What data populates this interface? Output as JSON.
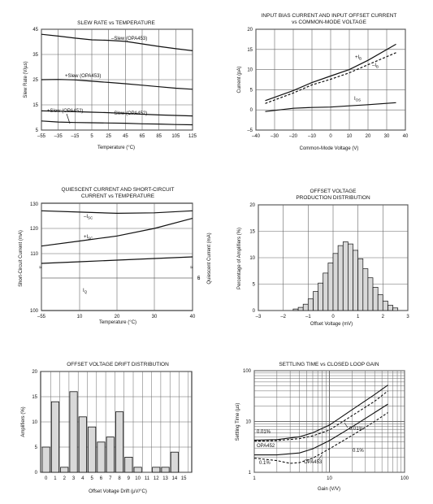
{
  "colors": {
    "axis": "#111111",
    "grid": "#666666",
    "bar_fill": "#d9d9d9",
    "curve": "#111111"
  },
  "chart_data": [
    {
      "id": "slew",
      "type": "line",
      "title": "SLEW RATE vs TEMPERATURE",
      "xlabel": "Temperature (°C)",
      "ylabel": "Slew Rate (V/µs)",
      "xlim": [
        -55,
        125
      ],
      "ylim": [
        5,
        45
      ],
      "xticks": [
        -55,
        -35,
        -15,
        5,
        25,
        45,
        65,
        85,
        105,
        125
      ],
      "yticks": [
        5,
        15,
        25,
        35,
        45
      ],
      "grid": true,
      "series": [
        {
          "name": "–Slew (OPA453)",
          "x": [
            -55,
            -35,
            -15,
            5,
            25,
            45,
            65,
            85,
            105,
            125
          ],
          "y": [
            43,
            42.3,
            41.5,
            40.8,
            40.6,
            40.2,
            39.2,
            38.2,
            37.3,
            36.5
          ]
        },
        {
          "name": "+Slew (OPA453)",
          "x": [
            -55,
            -35,
            -15,
            5,
            25,
            45,
            65,
            85,
            105,
            125
          ],
          "y": [
            25,
            25.1,
            24.9,
            24.4,
            23.9,
            23.4,
            22.8,
            22.2,
            21.6,
            21.2
          ]
        },
        {
          "name": "+Slew (OPA452)",
          "x": [
            -55,
            -35,
            -15,
            5,
            25,
            45,
            65,
            85,
            105,
            125
          ],
          "y": [
            12.6,
            12.5,
            12.3,
            12.1,
            11.9,
            11.6,
            11.3,
            11,
            10.8,
            10.6
          ]
        },
        {
          "name": "–Slew (OPA452)",
          "x": [
            -55,
            -35,
            -15,
            5,
            25,
            45,
            65,
            85,
            105,
            125
          ],
          "y": [
            8.6,
            8.2,
            8,
            7.9,
            7.8,
            7.7,
            7.5,
            7.4,
            7.2,
            7.1
          ]
        }
      ]
    },
    {
      "id": "bias",
      "type": "line",
      "title": "INPUT BIAS CURRENT AND INPUT OFFSET CURRENT",
      "subtitle": "vs COMMON-MODE VOLTAGE",
      "xlabel": "Common-Mode Voltage (V)",
      "ylabel": "Current (pA)",
      "xlim": [
        -40,
        40
      ],
      "ylim": [
        -5,
        20
      ],
      "xticks": [
        -40,
        -30,
        -20,
        -10,
        0,
        10,
        20,
        30,
        40
      ],
      "yticks": [
        -5,
        0,
        5,
        10,
        15,
        20
      ],
      "grid": true,
      "series": [
        {
          "name": "+IB",
          "x": [
            -35,
            -20,
            -10,
            0,
            10,
            20,
            35
          ],
          "y": [
            2.3,
            4.8,
            6.8,
            8.4,
            10,
            12.3,
            16.3
          ]
        },
        {
          "name": "–IB",
          "x": [
            -35,
            -20,
            -10,
            0,
            10,
            20,
            35
          ],
          "y": [
            1.6,
            4.2,
            6.2,
            7.6,
            9.2,
            11.2,
            14.2
          ]
        },
        {
          "name": "IOS",
          "x": [
            -35,
            -20,
            -10,
            0,
            10,
            20,
            35
          ],
          "y": [
            -0.4,
            0.4,
            0.6,
            0.7,
            1,
            1.3,
            1.8
          ]
        }
      ]
    },
    {
      "id": "quiescent",
      "type": "line",
      "title": "QUIESCENT CURRENT AND SHORT-CIRCUIT",
      "subtitle": "CURRENT vs TEMPERATURE",
      "xlabel": "Temperature (°C)",
      "ylabel_left": "Short-Circuit Current (mA)",
      "ylabel_right": "Quiescent Current (mA)",
      "xticks": [
        "–55",
        "10",
        "20",
        "30",
        "40"
      ],
      "yticks_left": [
        100,
        110,
        120,
        130
      ],
      "yticks_right": [
        5,
        6
      ],
      "grid": true,
      "series": [
        {
          "name": "–ISC",
          "x": [
            -55,
            10,
            20,
            30,
            40
          ],
          "y": [
            127,
            126.5,
            126,
            126.2,
            127
          ]
        },
        {
          "name": "+ISC",
          "x": [
            -55,
            10,
            20,
            30,
            40
          ],
          "y": [
            113,
            115,
            117,
            120,
            124
          ]
        },
        {
          "name": "IQ",
          "x": [
            -55,
            10,
            20,
            30,
            40
          ],
          "y": [
            5.45,
            5.5,
            5.55,
            5.6,
            5.65
          ]
        }
      ]
    },
    {
      "id": "offset",
      "type": "bar",
      "title": "OFFSET VOLTAGE",
      "subtitle": "PRODUCTION DISTRIBUTION",
      "xlabel": "Offset Voltage (mV)",
      "ylabel": "Percentage of Amplifiers (%)",
      "xlim": [
        -3,
        3
      ],
      "ylim": [
        0,
        20
      ],
      "xticks": [
        -3,
        -2,
        -1,
        0,
        1,
        2,
        3
      ],
      "yticks": [
        0,
        5,
        10,
        15,
        20
      ],
      "grid": true,
      "bin_start": -1.6,
      "bin_width": 0.2,
      "values": [
        0.3,
        0.6,
        1.2,
        2.2,
        3.6,
        5.2,
        7.1,
        9.0,
        10.8,
        12.3,
        13.0,
        12.6,
        11.4,
        9.8,
        7.9,
        6.2,
        4.4,
        3.0,
        1.8,
        1.0,
        0.5
      ]
    },
    {
      "id": "drift",
      "type": "bar",
      "title": "OFFSET VOLTAGE DRIFT DISTRIBUTION",
      "xlabel": "Offset Voltage Drift (µV/°C)",
      "ylabel": "Amplifiers (%)",
      "ylim": [
        0,
        20
      ],
      "categories": [
        "0",
        "1",
        "2",
        "3",
        "4",
        "5",
        "6",
        "7",
        "8",
        "9",
        "10",
        "11",
        "12",
        "13",
        "14",
        "15"
      ],
      "yticks": [
        0,
        5,
        10,
        15,
        20
      ],
      "values": [
        5,
        14,
        1,
        16,
        11,
        9,
        6,
        7,
        12,
        3,
        1,
        0,
        1,
        1,
        4,
        0
      ]
    },
    {
      "id": "settling",
      "type": "line",
      "title": "SETTLING TIME vs CLOSED LOOP GAIN",
      "xlabel": "Gain (V/V)",
      "ylabel": "Settling Time (µs)",
      "xlim": [
        1,
        100
      ],
      "ylim": [
        1,
        100
      ],
      "xticks": [
        "1",
        "10",
        "100"
      ],
      "yticks": [
        "1",
        "10",
        "100"
      ],
      "log_x": true,
      "log_y": true,
      "grid": true,
      "annotations": [
        "0.01%",
        "0.01%",
        "OPA452",
        "0.1%",
        "OPA453",
        "0.1%"
      ],
      "series": [
        {
          "name": "OPA452 0.01%",
          "x": [
            1,
            2,
            4,
            6,
            10,
            20,
            40,
            60
          ],
          "y": [
            4.3,
            4.4,
            5,
            6,
            8.5,
            17,
            34,
            52
          ]
        },
        {
          "name": "OPA453 0.01%",
          "x": [
            1,
            2,
            4,
            6,
            10,
            20,
            40,
            60
          ],
          "y": [
            4.1,
            4.2,
            4.6,
            5.2,
            6.8,
            13,
            25,
            40
          ]
        },
        {
          "name": "OPA452 0.1%",
          "x": [
            1,
            2,
            4,
            6,
            10,
            20,
            40,
            60
          ],
          "y": [
            2.2,
            2.2,
            2.4,
            2.9,
            4.2,
            7.8,
            15,
            22
          ]
        },
        {
          "name": "OPA453 0.1%",
          "x": [
            1,
            2,
            3,
            4,
            6,
            10,
            20,
            40,
            60
          ],
          "y": [
            1.9,
            1.7,
            1.5,
            1.55,
            1.9,
            2.9,
            5.3,
            10,
            15
          ]
        }
      ]
    }
  ]
}
